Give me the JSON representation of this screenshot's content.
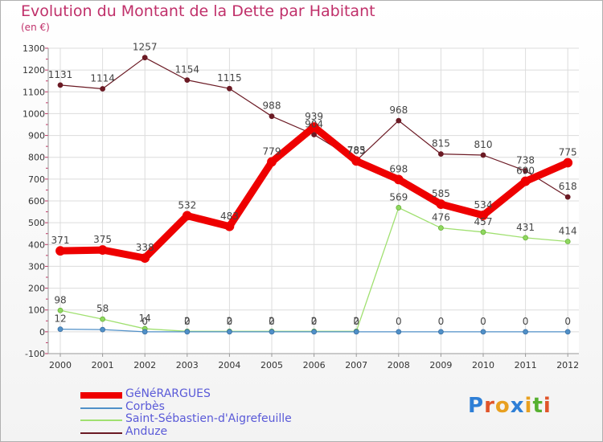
{
  "title": "Evolution du Montant de la Dette par Habitant",
  "unit": "(en €)",
  "logo": {
    "text": "Proxiti",
    "colors": [
      "#2e7fd6",
      "#e0542a",
      "#e8a020",
      "#2e7fd6",
      "#e8a020",
      "#56b030",
      "#e0542a"
    ]
  },
  "chart_data": {
    "type": "line",
    "title": "Evolution du Montant de la Dette par Habitant",
    "ylabel": "(en €)",
    "x": [
      "2000",
      "2001",
      "2002",
      "2003",
      "2004",
      "2005",
      "2006",
      "2007",
      "2008",
      "2009",
      "2010",
      "2011",
      "2012"
    ],
    "ylim": [
      -100,
      1300
    ],
    "yticks": [
      -100,
      0,
      100,
      200,
      300,
      400,
      500,
      600,
      700,
      800,
      900,
      1000,
      1100,
      1200,
      1300
    ],
    "grid": true,
    "legend_position": "bottom-left",
    "series": [
      {
        "name": "Anduze",
        "color": "#6b1a24",
        "values": [
          1131,
          1114,
          1257,
          1154,
          1115,
          988,
          904,
          785,
          968,
          815,
          810,
          738,
          618
        ]
      },
      {
        "name": "Saint-Sébastien-d'Aigrefeuille",
        "color": "#a0e070",
        "values": [
          98,
          58,
          14,
          2,
          2,
          2,
          2,
          2,
          569,
          476,
          457,
          431,
          414
        ]
      },
      {
        "name": "Corbès",
        "color": "#5090c8",
        "values": [
          12,
          10,
          0,
          0,
          0,
          0,
          0,
          0,
          0,
          0,
          0,
          0,
          0
        ]
      },
      {
        "name": "GéNéRARGUES",
        "color": "#ee0000",
        "values": [
          371,
          375,
          338,
          532,
          483,
          779,
          939,
          783,
          698,
          585,
          534,
          690,
          775
        ]
      }
    ],
    "data_labels": [
      {
        "series": "Anduze",
        "labels": [
          "1131",
          "1114",
          "1257",
          "1154",
          "1115",
          "988",
          "904",
          "785",
          "968",
          "815",
          "810",
          "738",
          "618"
        ]
      },
      {
        "series": "Saint-Sébastien-d'Aigrefeuille",
        "labels": [
          "98",
          "58",
          "14",
          "2",
          "2",
          "2",
          "2",
          "2",
          "569",
          "476",
          "457",
          "431",
          "414"
        ]
      },
      {
        "series": "Corbès",
        "labels": [
          "12",
          "",
          "0",
          "0",
          "0",
          "0",
          "0",
          "0",
          "0",
          "0",
          "0",
          "0",
          "0"
        ]
      },
      {
        "series": "GéNéRARGUES",
        "labels": [
          "371",
          "375",
          "338",
          "532",
          "483",
          "779",
          "939",
          "783",
          "698",
          "585",
          "534",
          "690",
          "775"
        ]
      }
    ],
    "legend": [
      {
        "name": "GéNéRARGUES",
        "color": "#ee0000"
      },
      {
        "name": "Corbès",
        "color": "#5090c8"
      },
      {
        "name": "Saint-Sébastien-d'Aigrefeuille",
        "color": "#a0e070"
      },
      {
        "name": "Anduze",
        "color": "#6b1a24"
      }
    ]
  }
}
